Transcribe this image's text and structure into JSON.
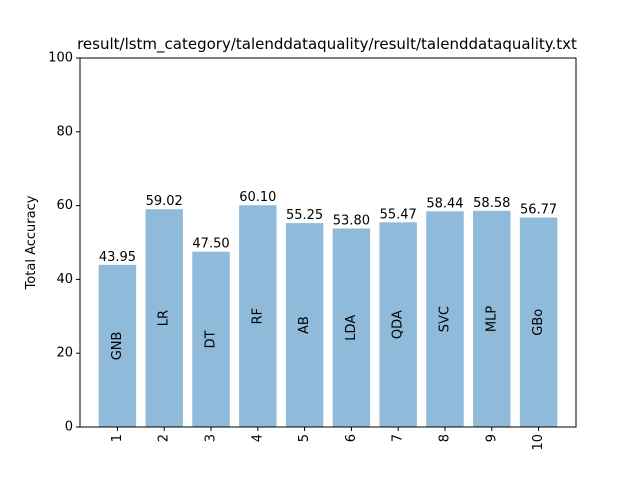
{
  "chart_data": {
    "type": "bar",
    "title": "result/lstm_category/talenddataquality/result/talenddataquality.txt",
    "xlabel": "",
    "ylabel": "Total Accuracy",
    "ylim": [
      0,
      100
    ],
    "yticks": [
      "0",
      "20",
      "40",
      "60",
      "80",
      "100"
    ],
    "categories": [
      "1",
      "2",
      "3",
      "4",
      "5",
      "6",
      "7",
      "8",
      "9",
      "10"
    ],
    "values": [
      43.95,
      59.02,
      47.5,
      60.1,
      55.25,
      53.8,
      55.47,
      58.44,
      58.58,
      56.77
    ],
    "value_labels": [
      "43.95",
      "59.02",
      "47.50",
      "60.10",
      "55.25",
      "53.80",
      "55.47",
      "58.44",
      "58.58",
      "56.77"
    ],
    "bar_labels": [
      "GNB",
      "LR",
      "DT",
      "RF",
      "AB",
      "LDA",
      "QDA",
      "SVC",
      "MLP",
      "GBo"
    ],
    "bar_color": "#8fbad9",
    "grid": false
  }
}
